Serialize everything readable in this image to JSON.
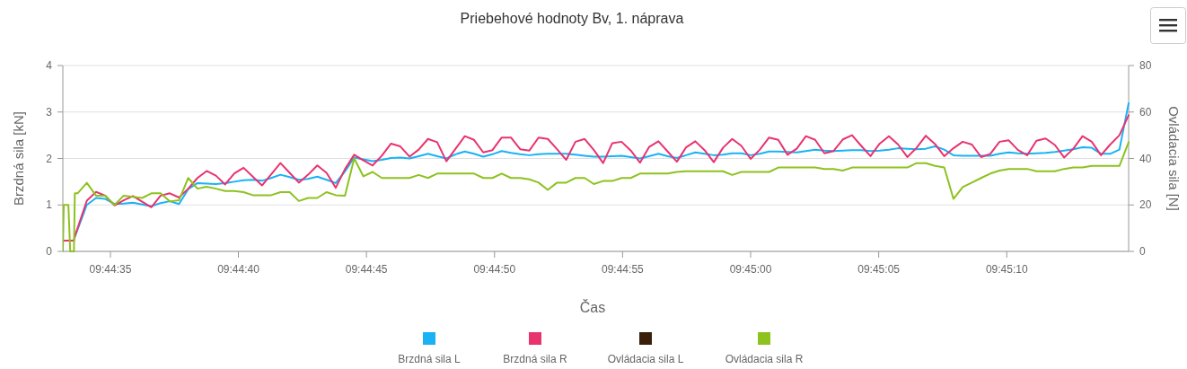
{
  "chart_data": {
    "type": "line",
    "title": "Priebehové hodnoty Bv, 1. náprava",
    "xlabel": "Čas",
    "ylabel": "Brzdná sila [kN]",
    "y2label": "Ovládacia sila [N]",
    "grid": "y",
    "legend": "bottom",
    "xlim": [
      9.74254,
      9.7541
    ],
    "xticks": [
      {
        "value": 9.743056,
        "label": "09:44:35"
      },
      {
        "value": 9.744444,
        "label": "09:44:40"
      },
      {
        "value": 9.745833,
        "label": "09:44:45"
      },
      {
        "value": 9.747222,
        "label": "09:44:50"
      },
      {
        "value": 9.748611,
        "label": "09:44:55"
      },
      {
        "value": 9.75,
        "label": "09:45:00"
      },
      {
        "value": 9.751389,
        "label": "09:45:05"
      },
      {
        "value": 9.752778,
        "label": "09:45:10"
      }
    ],
    "ylim": [
      0,
      4
    ],
    "yticks": [
      0,
      1,
      2,
      3,
      4
    ],
    "y2lim": [
      0,
      80
    ],
    "y2ticks": [
      0,
      20,
      40,
      60,
      80
    ],
    "x": [
      9.74254,
      9.74255,
      9.74256,
      9.7426,
      9.74262,
      9.74266,
      9.74267,
      9.7427,
      9.7428,
      9.7429,
      9.743,
      9.7431,
      9.7432,
      9.7433,
      9.7434,
      9.7435,
      9.7436,
      9.7437,
      9.7438,
      9.7439,
      9.744,
      9.7441,
      9.7442,
      9.7443,
      9.7444,
      9.7445,
      9.7446,
      9.7447,
      9.7448,
      9.7449,
      9.745,
      9.7451,
      9.7452,
      9.7453,
      9.7454,
      9.7455,
      9.7456,
      9.7457,
      9.7458,
      9.7459,
      9.746,
      9.7461,
      9.7462,
      9.7463,
      9.7464,
      9.7465,
      9.7466,
      9.7467,
      9.7468,
      9.7469,
      9.747,
      9.7471,
      9.7472,
      9.7473,
      9.7474,
      9.7475,
      9.7476,
      9.7477,
      9.7478,
      9.7479,
      9.748,
      9.7481,
      9.7482,
      9.7483,
      9.7484,
      9.7485,
      9.7486,
      9.7487,
      9.7488,
      9.7489,
      9.749,
      9.7491,
      9.7492,
      9.7493,
      9.7494,
      9.7495,
      9.7496,
      9.7497,
      9.7498,
      9.7499,
      9.75,
      9.7501,
      9.7502,
      9.7503,
      9.7504,
      9.7505,
      9.7506,
      9.7507,
      9.7508,
      9.7509,
      9.751,
      9.7511,
      9.7512,
      9.7513,
      9.7514,
      9.7515,
      9.7516,
      9.7517,
      9.7518,
      9.7519,
      9.752,
      9.7521,
      9.7522,
      9.7523,
      9.7524,
      9.7525,
      9.7526,
      9.7527,
      9.7528,
      9.7529,
      9.753,
      9.7531,
      9.7532,
      9.7533,
      9.7534,
      9.7535,
      9.7536,
      9.7537,
      9.7538,
      9.7539,
      9.754,
      9.7541
    ],
    "series": [
      {
        "name": "Brzdná sila L",
        "color": "#1ab2f5",
        "values": [
          null,
          null,
          null,
          null,
          null,
          null,
          0.31,
          0.47,
          1.0,
          1.15,
          1.13,
          1.02,
          1.03,
          1.05,
          1.01,
          0.97,
          1.04,
          1.08,
          1.02,
          1.34,
          1.47,
          1.46,
          1.45,
          1.47,
          1.5,
          1.53,
          1.54,
          1.52,
          1.58,
          1.65,
          1.6,
          1.54,
          1.56,
          1.61,
          1.54,
          1.47,
          1.72,
          2.02,
          1.98,
          1.94,
          1.97,
          2.01,
          2.02,
          2.0,
          2.05,
          2.1,
          2.05,
          2.0,
          2.09,
          2.15,
          2.1,
          2.04,
          2.09,
          2.16,
          2.12,
          2.09,
          2.07,
          2.09,
          2.1,
          2.1,
          2.1,
          2.08,
          2.06,
          2.04,
          2.04,
          2.05,
          2.06,
          2.03,
          2.0,
          2.05,
          2.1,
          2.05,
          2.01,
          2.07,
          2.13,
          2.1,
          2.07,
          2.08,
          2.11,
          2.11,
          2.07,
          2.1,
          2.15,
          2.15,
          2.14,
          2.13,
          2.16,
          2.19,
          2.17,
          2.16,
          2.17,
          2.18,
          2.18,
          2.16,
          2.17,
          2.19,
          2.22,
          2.21,
          2.2,
          2.21,
          2.26,
          2.19,
          2.07,
          2.06,
          2.06,
          2.06,
          2.06,
          2.1,
          2.13,
          2.11,
          2.1,
          2.11,
          2.12,
          2.14,
          2.17,
          2.2,
          2.24,
          2.23,
          2.1,
          2.1,
          2.19,
          3.19
        ]
      },
      {
        "name": "Brzdná sila R",
        "color": "#e8336f",
        "values": [
          0.23,
          0.23,
          0.23,
          0.23,
          0.23,
          0.23,
          0.33,
          0.5,
          1.09,
          1.28,
          1.2,
          0.99,
          1.1,
          1.19,
          1.07,
          0.95,
          1.2,
          1.25,
          1.16,
          1.35,
          1.58,
          1.73,
          1.63,
          1.44,
          1.68,
          1.8,
          1.61,
          1.42,
          1.66,
          1.9,
          1.69,
          1.48,
          1.65,
          1.85,
          1.69,
          1.37,
          1.77,
          2.08,
          1.96,
          1.85,
          2.06,
          2.32,
          2.26,
          2.04,
          2.19,
          2.42,
          2.35,
          1.94,
          2.21,
          2.48,
          2.4,
          2.13,
          2.18,
          2.45,
          2.45,
          2.2,
          2.17,
          2.45,
          2.42,
          2.2,
          1.97,
          2.36,
          2.42,
          2.18,
          1.9,
          2.33,
          2.36,
          2.17,
          1.91,
          2.25,
          2.37,
          2.15,
          1.93,
          2.24,
          2.37,
          2.18,
          1.92,
          2.23,
          2.42,
          2.27,
          1.99,
          2.19,
          2.45,
          2.4,
          2.08,
          2.21,
          2.48,
          2.4,
          2.11,
          2.16,
          2.41,
          2.5,
          2.27,
          2.05,
          2.32,
          2.48,
          2.3,
          2.03,
          2.23,
          2.49,
          2.31,
          2.05,
          2.22,
          2.36,
          2.3,
          2.03,
          2.1,
          2.36,
          2.39,
          2.18,
          2.07,
          2.38,
          2.43,
          2.29,
          2.02,
          2.21,
          2.48,
          2.36,
          2.07,
          2.3,
          2.5,
          2.93
        ]
      },
      {
        "name": "Ovládacia sila L",
        "color": "#3a200a",
        "axis": "y2",
        "values": [
          null,
          null,
          null,
          null,
          null,
          null,
          null,
          null,
          null,
          null,
          null,
          null,
          null,
          null,
          null,
          null,
          null,
          null,
          null,
          null,
          null,
          null,
          null,
          null,
          null,
          null,
          null,
          null,
          null,
          null,
          null,
          null,
          null,
          null,
          null,
          null,
          null,
          null,
          null,
          null,
          null,
          null,
          null,
          null,
          null,
          null,
          null,
          null,
          null,
          null,
          null,
          null,
          null,
          null,
          null,
          null,
          null,
          null,
          null,
          null,
          null,
          null,
          null,
          null,
          null,
          null,
          null,
          null,
          null,
          null,
          null,
          null,
          null,
          null,
          null,
          null,
          null,
          null,
          null,
          null,
          null,
          null,
          null,
          null,
          null,
          null,
          null,
          null,
          null,
          null,
          null,
          null,
          null,
          null,
          null,
          null,
          null,
          null,
          null,
          null,
          null,
          null,
          null,
          null,
          null,
          null,
          null,
          null,
          null,
          null,
          null,
          null,
          null,
          null,
          null,
          null,
          null,
          null,
          null,
          null,
          null,
          null
        ]
      },
      {
        "name": "Ovládacia sila R",
        "color": "#8dc21f",
        "axis": "y2",
        "values": [
          0,
          20,
          20,
          20,
          0,
          0,
          25,
          25,
          29.5,
          24,
          24,
          20,
          24,
          23.5,
          23,
          25,
          25,
          21.5,
          22,
          31.6,
          27,
          27.8,
          27,
          26,
          26,
          25.5,
          24.2,
          24.2,
          24.2,
          25.5,
          25.5,
          21.7,
          23,
          23,
          25.5,
          24.2,
          24,
          40,
          32.3,
          34.2,
          31.6,
          31.6,
          31.6,
          31.6,
          32.9,
          31.6,
          33.5,
          33.5,
          33.5,
          33.5,
          33.5,
          31.6,
          31.6,
          33.5,
          31.6,
          31.6,
          31,
          29.6,
          26.5,
          29.6,
          29.6,
          31.6,
          31.6,
          29,
          30.3,
          30.3,
          31.6,
          31.6,
          33.5,
          33.5,
          33.5,
          33.5,
          34.2,
          34.5,
          34.5,
          34.5,
          34.5,
          34.5,
          32.9,
          34.2,
          34.2,
          34.2,
          34.2,
          36.1,
          36.1,
          36.1,
          36.1,
          36.1,
          35.5,
          35.5,
          34.8,
          36.1,
          36.1,
          36.1,
          36.1,
          36.1,
          36.1,
          36.1,
          38,
          38,
          36.8,
          36.1,
          22.6,
          27.7,
          29.6,
          31.6,
          33.5,
          34.8,
          35.5,
          35.5,
          35.5,
          34.5,
          34.5,
          34.5,
          35.5,
          36.1,
          36.1,
          36.8,
          36.8,
          36.8,
          36.8,
          47
        ]
      }
    ]
  }
}
